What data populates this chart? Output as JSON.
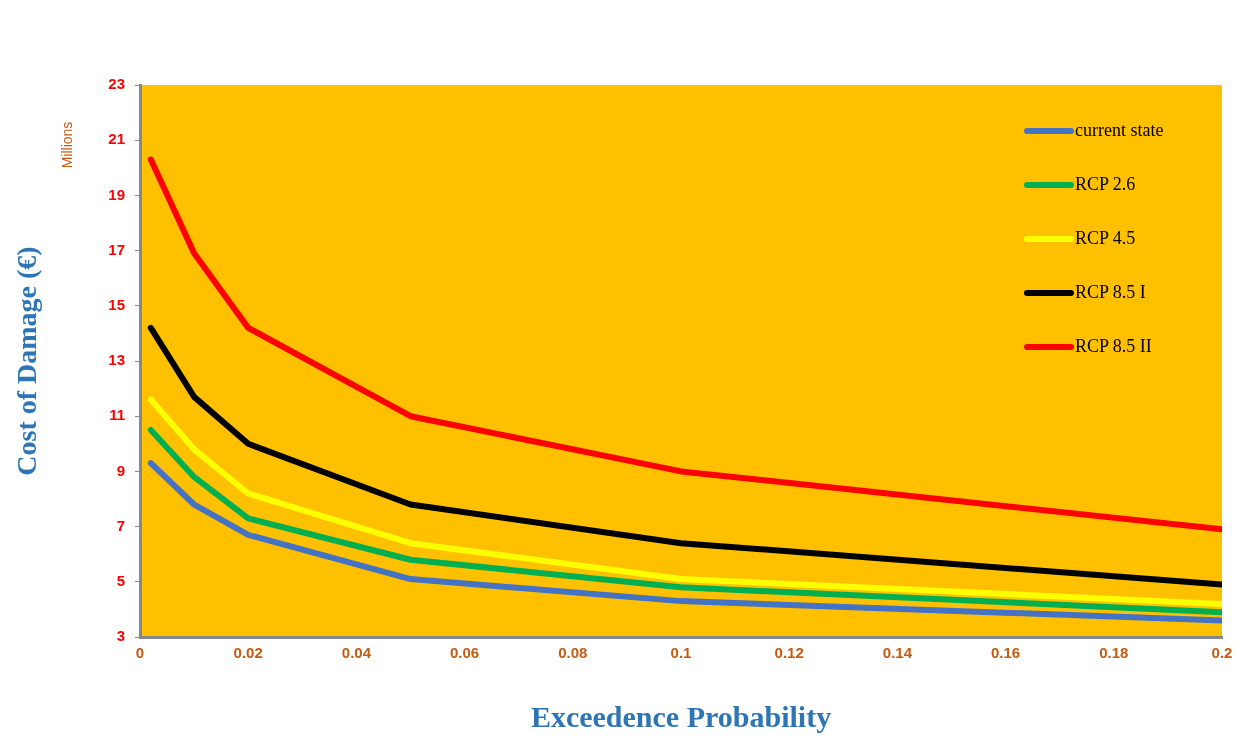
{
  "chart_data": {
    "type": "line",
    "xlabel": "Exceedence Probability",
    "ylabel": "Cost of Damage (€)",
    "annotations": [
      "Millions"
    ],
    "x": [
      0.002,
      0.01,
      0.02,
      0.05,
      0.1,
      0.2
    ],
    "series": [
      {
        "name": "current state",
        "color": "#4472c4",
        "values": [
          9.3,
          7.8,
          6.7,
          5.1,
          4.3,
          3.6
        ]
      },
      {
        "name": "RCP 2.6",
        "color": "#00b050",
        "values": [
          10.5,
          8.8,
          7.3,
          5.8,
          4.8,
          3.9
        ]
      },
      {
        "name": "RCP 4.5",
        "color": "#ffff00",
        "values": [
          11.6,
          9.8,
          8.2,
          6.4,
          5.1,
          4.2
        ]
      },
      {
        "name": "RCP 8.5 I",
        "color": "#000000",
        "values": [
          14.2,
          11.7,
          10.0,
          7.8,
          6.4,
          4.9
        ]
      },
      {
        "name": "RCP 8.5 II",
        "color": "#ff0000",
        "values": [
          20.3,
          16.9,
          14.2,
          11.0,
          9.0,
          6.9
        ]
      }
    ],
    "xlim": [
      0,
      0.2
    ],
    "xticks": [
      0,
      0.02,
      0.04,
      0.06,
      0.08,
      0.1,
      0.12,
      0.14,
      0.16,
      0.18,
      0.2
    ],
    "ylim": [
      3,
      23
    ],
    "yticks": [
      3,
      5,
      7,
      9,
      11,
      13,
      15,
      17,
      19,
      21,
      23
    ],
    "grid": false,
    "legend": "top right",
    "marker": "none",
    "line_style": "solid"
  }
}
